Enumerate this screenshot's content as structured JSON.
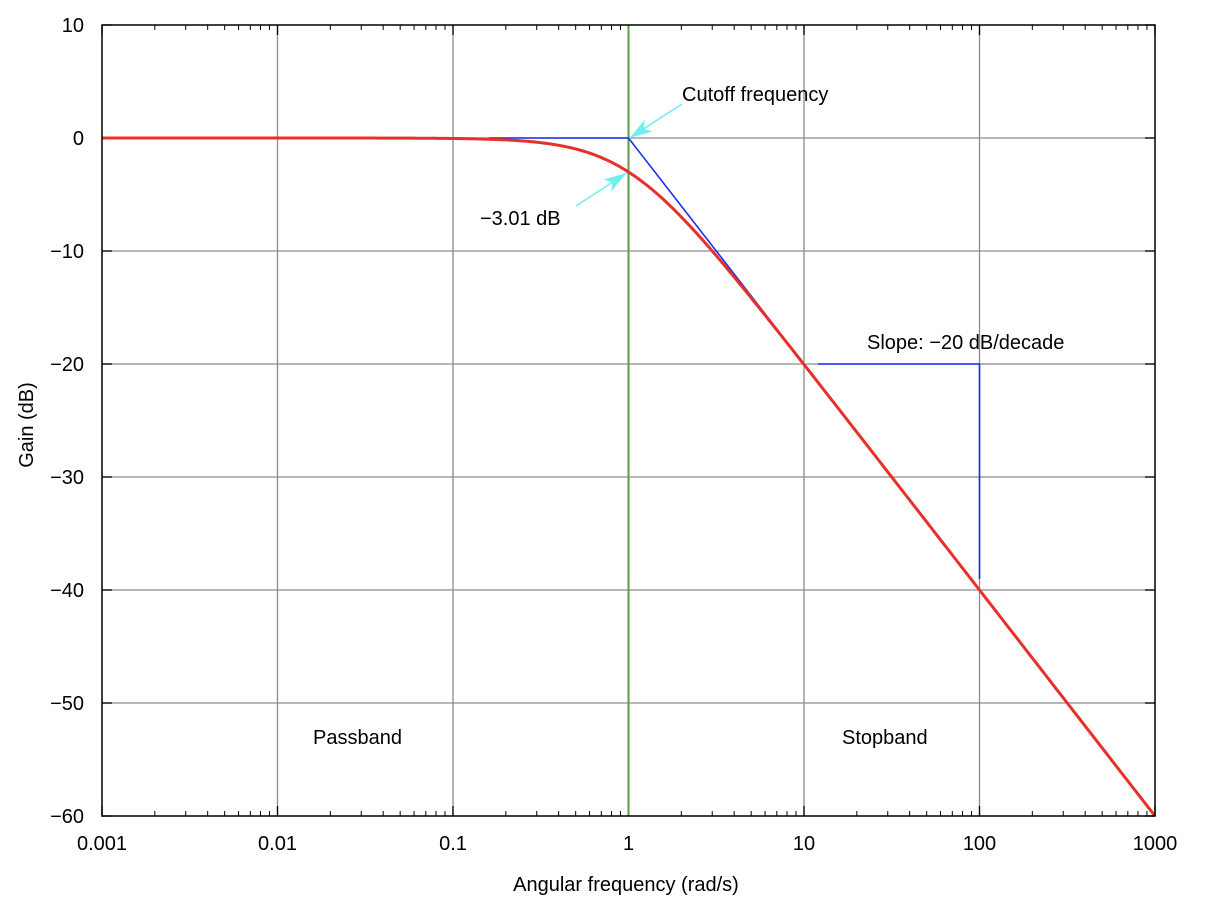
{
  "chart_data": {
    "type": "line",
    "title": "",
    "xlabel": "Angular frequency (rad/s)",
    "ylabel": "Gain (dB)",
    "xscale": "log",
    "xlim": [
      0.001,
      1000
    ],
    "ylim": [
      -60,
      10
    ],
    "grid": true,
    "x_ticks": [
      0.001,
      0.01,
      0.1,
      1,
      10,
      100,
      1000
    ],
    "x_tick_labels": [
      "0.001",
      "0.01",
      "0.1",
      "1",
      "10",
      "100",
      "1000"
    ],
    "y_ticks": [
      10,
      0,
      -10,
      -20,
      -30,
      -40,
      -50,
      -60
    ],
    "y_tick_labels": [
      "10",
      "0",
      "−10",
      "−20",
      "−30",
      "−40",
      "−50",
      "−60"
    ],
    "series": [
      {
        "name": "Magnitude response",
        "formula": "-10*log10(1+w^2)",
        "color": "#e8302a"
      },
      {
        "name": "Asymptote",
        "points": [
          [
            0.16,
            0
          ],
          [
            1,
            0
          ],
          [
            10,
            -20
          ]
        ],
        "color": "#1a2cf5"
      },
      {
        "name": "Slope indicator",
        "points": [
          [
            12,
            -20
          ],
          [
            100,
            -20
          ],
          [
            100,
            -39
          ]
        ],
        "color": "#1a2cf5"
      },
      {
        "name": "Cutoff line",
        "x": 1,
        "color": "#5a9a4a"
      }
    ],
    "annotations": [
      {
        "text": "Cutoff frequency",
        "target": [
          1,
          0
        ]
      },
      {
        "text": "−3.01 dB",
        "target": [
          1,
          -3.01
        ]
      },
      {
        "text": "Slope: −20 dB/decade"
      },
      {
        "text": "Passband"
      },
      {
        "text": "Stopband"
      }
    ],
    "arrow_color": "#6ff0f0"
  }
}
